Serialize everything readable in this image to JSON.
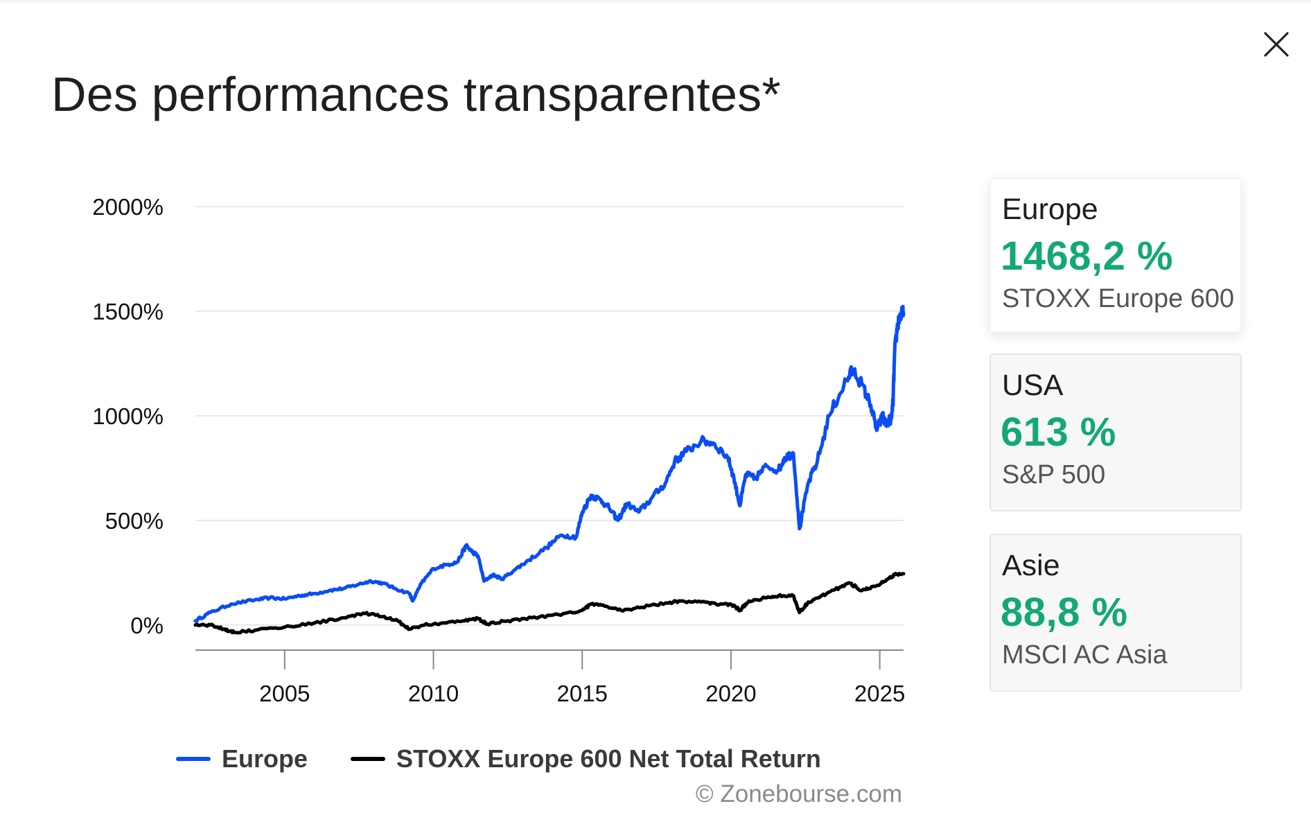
{
  "page": {
    "title": "Des performances transparentes*",
    "close_icon": "close-icon",
    "credit": "© Zonebourse.com"
  },
  "legend": [
    {
      "label": "Europe",
      "color": "#0a4df5"
    },
    {
      "label": "STOXX Europe 600 Net Total Return",
      "color": "#000000"
    }
  ],
  "cards": [
    {
      "region": "Europe",
      "value": "1468,2 %",
      "index": "STOXX Europe 600",
      "active": true
    },
    {
      "region": "USA",
      "value": "613 %",
      "index": "S&P 500",
      "active": false
    },
    {
      "region": "Asie",
      "value": "88,8 %",
      "index": "MSCI AC Asia",
      "active": false
    }
  ],
  "colors": {
    "accent_green": "#13a874",
    "europe_line": "#0a4df5",
    "benchmark_line": "#000000"
  },
  "chart_data": {
    "type": "line",
    "title": "",
    "xlabel": "",
    "ylabel": "",
    "y_unit": "%",
    "xlim": [
      2002.0,
      2025.8
    ],
    "ylim": [
      -120,
      2000
    ],
    "y_ticks": [
      0,
      500,
      1000,
      1500,
      2000
    ],
    "y_tick_labels": [
      "0%",
      "500%",
      "1000%",
      "1500%",
      "2000%"
    ],
    "x_ticks": [
      2005,
      2010,
      2015,
      2020,
      2025
    ],
    "x_tick_labels": [
      "2005",
      "2010",
      "2015",
      "2020",
      "2025"
    ],
    "grid": true,
    "legend_position": "bottom-left",
    "series": [
      {
        "name": "Europe",
        "color": "#0a4df5",
        "points": [
          [
            2002.0,
            20
          ],
          [
            2002.5,
            60
          ],
          [
            2003.2,
            100
          ],
          [
            2004.0,
            120
          ],
          [
            2004.5,
            130
          ],
          [
            2005.0,
            125
          ],
          [
            2005.5,
            140
          ],
          [
            2006.0,
            150
          ],
          [
            2006.5,
            165
          ],
          [
            2007.0,
            175
          ],
          [
            2007.5,
            195
          ],
          [
            2007.9,
            210
          ],
          [
            2008.3,
            200
          ],
          [
            2008.7,
            175
          ],
          [
            2009.2,
            150
          ],
          [
            2009.3,
            115
          ],
          [
            2009.6,
            200
          ],
          [
            2010.0,
            270
          ],
          [
            2010.5,
            290
          ],
          [
            2010.8,
            300
          ],
          [
            2011.1,
            380
          ],
          [
            2011.3,
            350
          ],
          [
            2011.5,
            330
          ],
          [
            2011.7,
            210
          ],
          [
            2012.0,
            240
          ],
          [
            2012.3,
            220
          ],
          [
            2012.7,
            260
          ],
          [
            2013.2,
            310
          ],
          [
            2013.8,
            370
          ],
          [
            2014.3,
            430
          ],
          [
            2014.8,
            420
          ],
          [
            2015.0,
            540
          ],
          [
            2015.3,
            620
          ],
          [
            2015.6,
            600
          ],
          [
            2015.9,
            560
          ],
          [
            2016.2,
            500
          ],
          [
            2016.5,
            580
          ],
          [
            2016.9,
            540
          ],
          [
            2017.3,
            600
          ],
          [
            2017.8,
            680
          ],
          [
            2018.1,
            780
          ],
          [
            2018.5,
            830
          ],
          [
            2019.0,
            880
          ],
          [
            2019.4,
            870
          ],
          [
            2019.9,
            800
          ],
          [
            2020.1,
            700
          ],
          [
            2020.3,
            570
          ],
          [
            2020.5,
            720
          ],
          [
            2020.8,
            700
          ],
          [
            2021.2,
            760
          ],
          [
            2021.6,
            740
          ],
          [
            2021.8,
            800
          ],
          [
            2022.1,
            820
          ],
          [
            2022.3,
            460
          ],
          [
            2022.6,
            680
          ],
          [
            2022.9,
            780
          ],
          [
            2023.3,
            1000
          ],
          [
            2023.8,
            1150
          ],
          [
            2024.1,
            1220
          ],
          [
            2024.4,
            1150
          ],
          [
            2024.7,
            1050
          ],
          [
            2024.9,
            930
          ],
          [
            2025.1,
            1000
          ],
          [
            2025.2,
            960
          ],
          [
            2025.4,
            990
          ],
          [
            2025.45,
            1080
          ],
          [
            2025.5,
            1300
          ],
          [
            2025.6,
            1440
          ],
          [
            2025.7,
            1480
          ],
          [
            2025.8,
            1490
          ]
        ]
      },
      {
        "name": "STOXX Europe 600 Net Total Return",
        "color": "#000000",
        "points": [
          [
            2002.0,
            0
          ],
          [
            2002.5,
            0
          ],
          [
            2003.0,
            -20
          ],
          [
            2003.3,
            -35
          ],
          [
            2004.0,
            -25
          ],
          [
            2005.0,
            -10
          ],
          [
            2006.0,
            10
          ],
          [
            2007.0,
            35
          ],
          [
            2007.7,
            55
          ],
          [
            2008.3,
            40
          ],
          [
            2008.8,
            20
          ],
          [
            2009.2,
            -20
          ],
          [
            2009.7,
            0
          ],
          [
            2010.3,
            10
          ],
          [
            2011.0,
            20
          ],
          [
            2011.5,
            30
          ],
          [
            2011.8,
            5
          ],
          [
            2012.5,
            20
          ],
          [
            2013.3,
            35
          ],
          [
            2014.2,
            50
          ],
          [
            2015.0,
            70
          ],
          [
            2015.3,
            100
          ],
          [
            2015.8,
            90
          ],
          [
            2016.3,
            70
          ],
          [
            2017.0,
            85
          ],
          [
            2017.8,
            105
          ],
          [
            2018.3,
            115
          ],
          [
            2019.0,
            110
          ],
          [
            2019.5,
            100
          ],
          [
            2020.0,
            100
          ],
          [
            2020.3,
            70
          ],
          [
            2020.6,
            115
          ],
          [
            2021.2,
            130
          ],
          [
            2021.6,
            140
          ],
          [
            2022.1,
            140
          ],
          [
            2022.3,
            60
          ],
          [
            2022.6,
            110
          ],
          [
            2023.0,
            135
          ],
          [
            2023.5,
            170
          ],
          [
            2024.0,
            200
          ],
          [
            2024.4,
            165
          ],
          [
            2024.8,
            185
          ],
          [
            2025.2,
            210
          ],
          [
            2025.5,
            240
          ],
          [
            2025.8,
            245
          ]
        ]
      }
    ]
  }
}
